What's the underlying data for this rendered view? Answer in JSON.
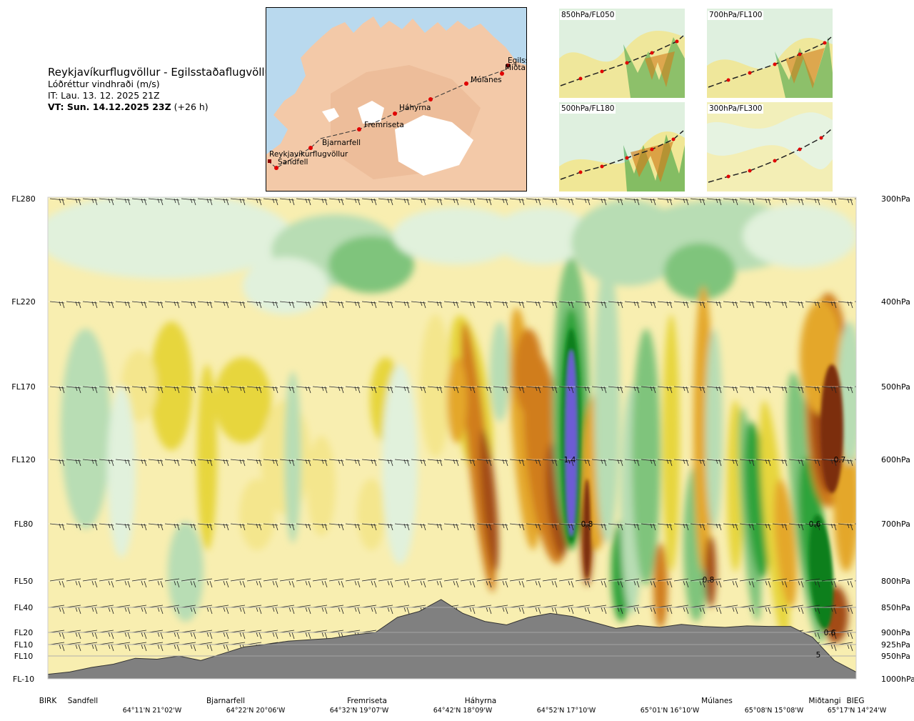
{
  "header": {
    "route": "Reykjavíkurflugvöllur - Egilsstaðaflugvöllur",
    "parameter": "Lóðréttur vindhraði (m/s)",
    "it": "IT: Lau. 13. 12. 2025 21Z",
    "vt_bold": "VT: Sun. 14.12.2025 23Z",
    "vt_offset": "(+26 h)"
  },
  "map": {
    "waypoints": [
      "Reykjavíkurflugvöllur",
      "Sandfell",
      "Bjarnarfell",
      "Fremriseta",
      "Háhyrna",
      "Múlanes",
      "Miðtangi",
      "Egilsst"
    ]
  },
  "mini_maps": [
    {
      "label": "850hPa/FL050"
    },
    {
      "label": "700hPa/FL100"
    },
    {
      "label": "500hPa/FL180"
    },
    {
      "label": "300hPa/FL300"
    }
  ],
  "colors": {
    "ocean": "#b9d9ee",
    "land": "#f3c9a8",
    "terrain": "#808080",
    "plot_background": "#f8eeb0"
  },
  "chart_data": {
    "type": "heatmap",
    "title": "",
    "left_axis_labels": [
      "FL280",
      "FL220",
      "FL170",
      "FL120",
      "FL80",
      "FL50",
      "FL40",
      "FL20",
      "FL10",
      "FL10",
      "FL-10"
    ],
    "right_axis_labels": [
      "300hPa",
      "400hPa",
      "500hPa",
      "600hPa",
      "700hPa",
      "800hPa",
      "850hPa",
      "900hPa",
      "925hPa",
      "950hPa",
      "1000hPa"
    ],
    "pressure_levels_hPa": [
      300,
      400,
      500,
      600,
      700,
      800,
      850,
      900,
      925,
      950,
      1000
    ],
    "waypoints": [
      "BIRK",
      "Sandfell",
      "Bjarnarfell",
      "Fremriseta",
      "Háhyrna",
      "Múlanes",
      "Miðtangi",
      "BIEG"
    ],
    "coordinates": [
      "64°11'N 21°02'W",
      "64°22'N 20°06'W",
      "64°32'N 19°07'W",
      "64°42'N 18°09'W",
      "64°52'N 17°10'W",
      "65°01'N 16°10'W",
      "65°08'N 15°08'W",
      "65°17'N 14°24'W"
    ],
    "value_labels": [
      "1.4",
      "0.8",
      "0.8",
      "0.7",
      "0.6",
      "0.6",
      "5"
    ],
    "colorscale": [
      "#6d5bd4",
      "#0d7f1f",
      "#2fa33a",
      "#7fc47c",
      "#b8ddb4",
      "#e1f1dc",
      "#fbf7d6",
      "#f4e68d",
      "#e7d63e",
      "#e4a72a",
      "#d07d1a",
      "#a34c16",
      "#7c2f10"
    ],
    "terrain_profile_hPa": [
      990,
      985,
      975,
      968,
      955,
      957,
      950,
      960,
      945,
      930,
      925,
      918,
      915,
      912,
      905,
      900,
      870,
      858,
      835,
      862,
      878,
      885,
      870,
      862,
      868,
      880,
      892,
      886,
      890,
      884,
      888,
      890,
      887,
      888,
      888,
      910,
      960,
      985
    ]
  }
}
